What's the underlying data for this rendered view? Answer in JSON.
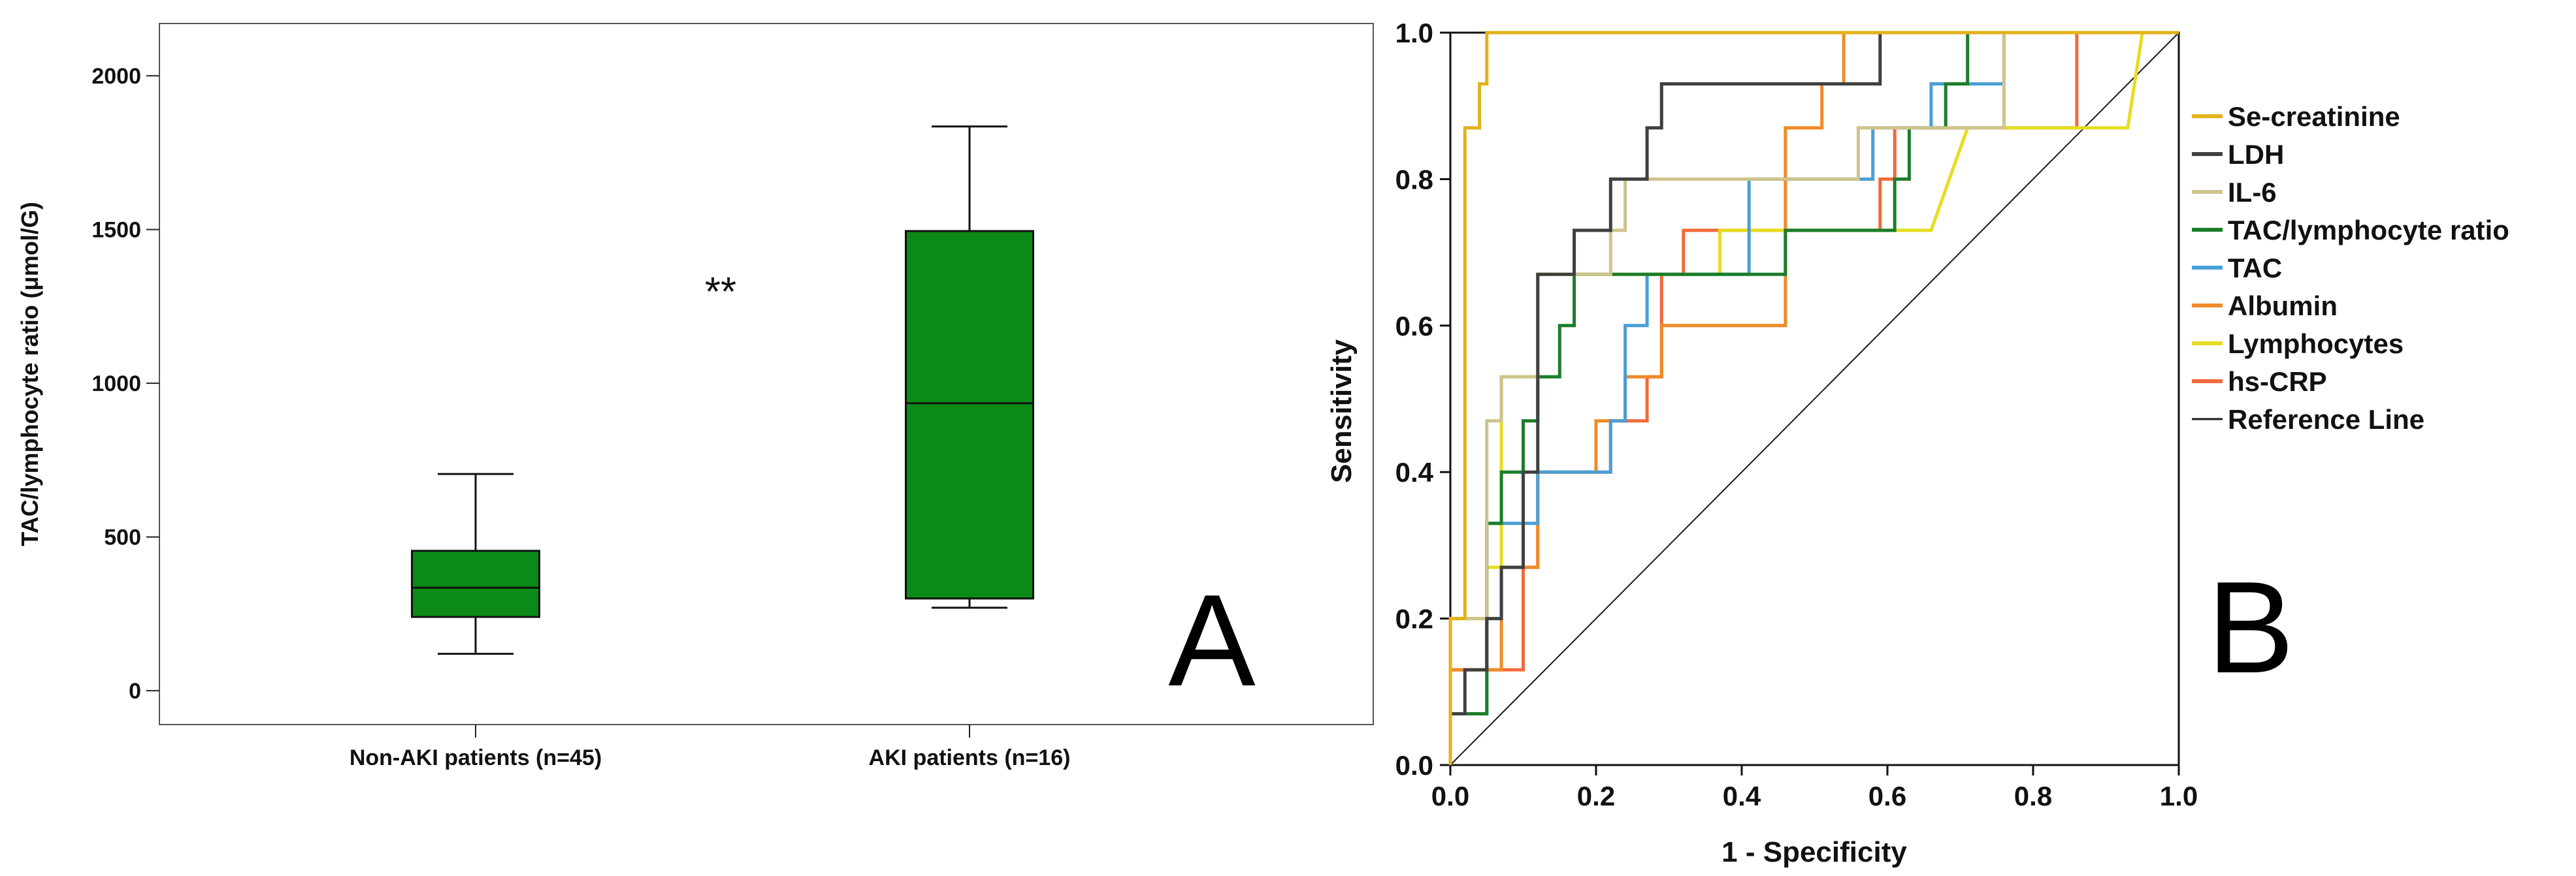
{
  "chart_data": [
    {
      "type": "box",
      "panel_label": "A",
      "ylabel": "TAC/lymphocyte ratio (μmol/G)",
      "xlabel": "",
      "ylim": [
        -110,
        2170
      ],
      "y_ticks": [
        0,
        500,
        1000,
        1500,
        2000
      ],
      "significance": "**",
      "categories": [
        "Non-AKI patients (n=45)",
        "AKI patients (n=16)"
      ],
      "boxes": [
        {
          "name": "Non-AKI patients (n=45)",
          "min": 120,
          "q1": 240,
          "median": 335,
          "q3": 455,
          "max": 705,
          "color": "#0b8a17"
        },
        {
          "name": "AKI patients (n=16)",
          "min": 270,
          "q1": 300,
          "median": 935,
          "q3": 1495,
          "max": 1835,
          "color": "#0b8a17"
        }
      ]
    },
    {
      "type": "line",
      "panel_label": "B",
      "xlabel": "1 - Specificity",
      "ylabel": "Sensitivity",
      "xlim": [
        0,
        1
      ],
      "ylim": [
        0,
        1
      ],
      "x_ticks": [
        "0.0",
        "0.2",
        "0.4",
        "0.6",
        "0.8",
        "1.0"
      ],
      "y_ticks": [
        "0.0",
        "0.2",
        "0.4",
        "0.6",
        "0.8",
        "1.0"
      ],
      "legend_position": "right",
      "series": [
        {
          "name": "Se-creatinine",
          "color": "#e3b21b",
          "points": [
            [
              0,
              0
            ],
            [
              0,
              0.2
            ],
            [
              0.02,
              0.2
            ],
            [
              0.02,
              0.87
            ],
            [
              0.04,
              0.87
            ],
            [
              0.04,
              0.93
            ],
            [
              0.05,
              0.93
            ],
            [
              0.05,
              1
            ],
            [
              1,
              1
            ]
          ]
        },
        {
          "name": "LDH",
          "color": "#404040",
          "points": [
            [
              0,
              0
            ],
            [
              0,
              0.07
            ],
            [
              0.02,
              0.07
            ],
            [
              0.02,
              0.13
            ],
            [
              0.05,
              0.13
            ],
            [
              0.05,
              0.2
            ],
            [
              0.07,
              0.2
            ],
            [
              0.07,
              0.27
            ],
            [
              0.1,
              0.27
            ],
            [
              0.1,
              0.4
            ],
            [
              0.12,
              0.4
            ],
            [
              0.12,
              0.67
            ],
            [
              0.17,
              0.67
            ],
            [
              0.17,
              0.73
            ],
            [
              0.22,
              0.73
            ],
            [
              0.22,
              0.8
            ],
            [
              0.27,
              0.8
            ],
            [
              0.27,
              0.87
            ],
            [
              0.29,
              0.87
            ],
            [
              0.29,
              0.93
            ],
            [
              0.59,
              0.93
            ],
            [
              0.59,
              1
            ],
            [
              1,
              1
            ]
          ]
        },
        {
          "name": "IL-6",
          "color": "#cdc48c",
          "points": [
            [
              0,
              0
            ],
            [
              0,
              0.2
            ],
            [
              0.05,
              0.2
            ],
            [
              0.05,
              0.47
            ],
            [
              0.07,
              0.47
            ],
            [
              0.07,
              0.53
            ],
            [
              0.12,
              0.53
            ],
            [
              0.12,
              0.67
            ],
            [
              0.22,
              0.67
            ],
            [
              0.22,
              0.73
            ],
            [
              0.24,
              0.73
            ],
            [
              0.24,
              0.8
            ],
            [
              0.41,
              0.8
            ],
            [
              0.41,
              0.8
            ],
            [
              0.56,
              0.8
            ],
            [
              0.56,
              0.87
            ],
            [
              0.76,
              0.87
            ],
            [
              0.76,
              1
            ],
            [
              1,
              1
            ]
          ]
        },
        {
          "name": "TAC/lymphocyte ratio",
          "color": "#1b7d2a",
          "points": [
            [
              0,
              0
            ],
            [
              0,
              0.07
            ],
            [
              0.05,
              0.07
            ],
            [
              0.05,
              0.33
            ],
            [
              0.07,
              0.33
            ],
            [
              0.07,
              0.4
            ],
            [
              0.1,
              0.4
            ],
            [
              0.1,
              0.47
            ],
            [
              0.12,
              0.47
            ],
            [
              0.12,
              0.53
            ],
            [
              0.15,
              0.53
            ],
            [
              0.15,
              0.6
            ],
            [
              0.17,
              0.6
            ],
            [
              0.17,
              0.67
            ],
            [
              0.46,
              0.67
            ],
            [
              0.46,
              0.73
            ],
            [
              0.61,
              0.73
            ],
            [
              0.61,
              0.8
            ],
            [
              0.63,
              0.8
            ],
            [
              0.63,
              0.87
            ],
            [
              0.68,
              0.87
            ],
            [
              0.68,
              0.93
            ],
            [
              0.71,
              0.93
            ],
            [
              0.71,
              1
            ],
            [
              1,
              1
            ]
          ]
        },
        {
          "name": "TAC",
          "color": "#4a9fd6",
          "points": [
            [
              0,
              0
            ],
            [
              0,
              0.07
            ],
            [
              0.05,
              0.07
            ],
            [
              0.05,
              0.33
            ],
            [
              0.12,
              0.33
            ],
            [
              0.12,
              0.4
            ],
            [
              0.22,
              0.4
            ],
            [
              0.22,
              0.47
            ],
            [
              0.24,
              0.47
            ],
            [
              0.24,
              0.6
            ],
            [
              0.27,
              0.6
            ],
            [
              0.27,
              0.67
            ],
            [
              0.41,
              0.67
            ],
            [
              0.41,
              0.8
            ],
            [
              0.58,
              0.8
            ],
            [
              0.58,
              0.87
            ],
            [
              0.66,
              0.87
            ],
            [
              0.66,
              0.93
            ],
            [
              0.76,
              0.93
            ],
            [
              0.76,
              1
            ],
            [
              1,
              1
            ]
          ]
        },
        {
          "name": "Albumin",
          "color": "#f08a28",
          "points": [
            [
              0,
              0
            ],
            [
              0,
              0.13
            ],
            [
              0.07,
              0.13
            ],
            [
              0.07,
              0.27
            ],
            [
              0.12,
              0.27
            ],
            [
              0.12,
              0.4
            ],
            [
              0.2,
              0.4
            ],
            [
              0.2,
              0.47
            ],
            [
              0.24,
              0.47
            ],
            [
              0.24,
              0.53
            ],
            [
              0.29,
              0.53
            ],
            [
              0.29,
              0.6
            ],
            [
              0.46,
              0.6
            ],
            [
              0.46,
              0.87
            ],
            [
              0.51,
              0.87
            ],
            [
              0.51,
              0.93
            ],
            [
              0.54,
              0.93
            ],
            [
              0.54,
              1
            ],
            [
              1,
              1
            ]
          ]
        },
        {
          "name": "Lymphocytes",
          "color": "#e6dd1f",
          "points": [
            [
              0,
              0
            ],
            [
              0,
              0.2
            ],
            [
              0.05,
              0.2
            ],
            [
              0.05,
              0.27
            ],
            [
              0.07,
              0.27
            ],
            [
              0.07,
              0.53
            ],
            [
              0.12,
              0.53
            ],
            [
              0.12,
              0.67
            ],
            [
              0.37,
              0.67
            ],
            [
              0.37,
              0.73
            ],
            [
              0.66,
              0.73
            ],
            [
              0.71,
              0.87
            ],
            [
              0.93,
              0.87
            ],
            [
              0.95,
              1
            ],
            [
              1,
              1
            ]
          ]
        },
        {
          "name": "hs-CRP",
          "color": "#f26a3a",
          "points": [
            [
              0,
              0
            ],
            [
              0,
              0.13
            ],
            [
              0.1,
              0.13
            ],
            [
              0.1,
              0.27
            ],
            [
              0.12,
              0.27
            ],
            [
              0.12,
              0.4
            ],
            [
              0.22,
              0.4
            ],
            [
              0.22,
              0.47
            ],
            [
              0.27,
              0.47
            ],
            [
              0.27,
              0.53
            ],
            [
              0.29,
              0.53
            ],
            [
              0.29,
              0.67
            ],
            [
              0.32,
              0.67
            ],
            [
              0.32,
              0.73
            ],
            [
              0.59,
              0.73
            ],
            [
              0.59,
              0.8
            ],
            [
              0.61,
              0.8
            ],
            [
              0.61,
              0.87
            ],
            [
              0.86,
              0.87
            ],
            [
              0.86,
              1
            ],
            [
              1,
              1
            ]
          ]
        },
        {
          "name": "Reference Line",
          "color": "#1a1a1a",
          "points": [
            [
              0,
              0
            ],
            [
              1,
              1
            ]
          ]
        }
      ]
    }
  ]
}
